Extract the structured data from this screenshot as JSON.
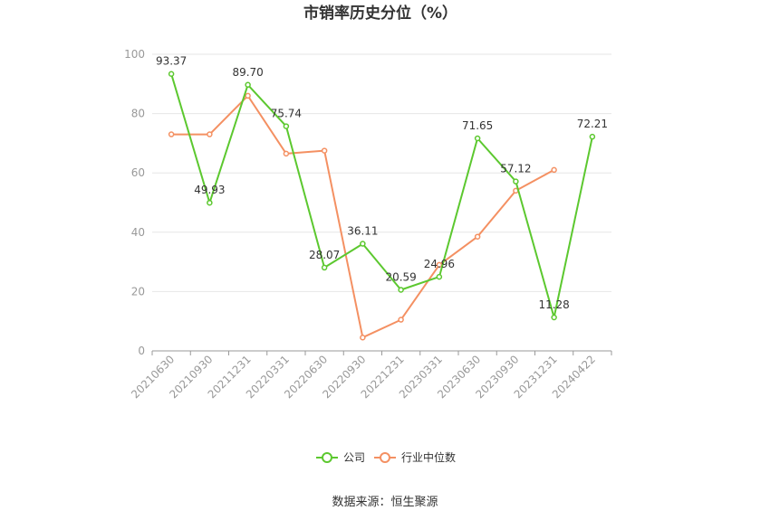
{
  "chart_data": {
    "type": "line",
    "title": "市销率历史分位（%）",
    "x": [
      "20210630",
      "20210930",
      "20211231",
      "20220331",
      "20220630",
      "20220930",
      "20221231",
      "20230331",
      "20230630",
      "20230930",
      "20231231",
      "20240422"
    ],
    "series": [
      {
        "name": "公司",
        "color": "#5cc82f",
        "values": [
          93.37,
          49.93,
          89.7,
          75.74,
          28.07,
          36.11,
          20.59,
          24.96,
          71.65,
          57.12,
          11.28,
          72.21
        ],
        "labels": [
          "93.37",
          "49.93",
          "89.70",
          "75.74",
          "28.07",
          "36.11",
          "20.59",
          "24.96",
          "71.65",
          "57.12",
          "11.28",
          "72.21"
        ]
      },
      {
        "name": "行业中位数",
        "color": "#f49062",
        "values": [
          73,
          73,
          86,
          66.5,
          67.5,
          4.5,
          10.5,
          29,
          38.5,
          54,
          61,
          null
        ]
      }
    ],
    "ylim": [
      0,
      100
    ],
    "yticks": [
      0,
      20,
      40,
      60,
      80,
      100
    ],
    "grid": true,
    "legend": "bottom-center"
  },
  "footer": {
    "source": "数据来源：恒生聚源"
  }
}
